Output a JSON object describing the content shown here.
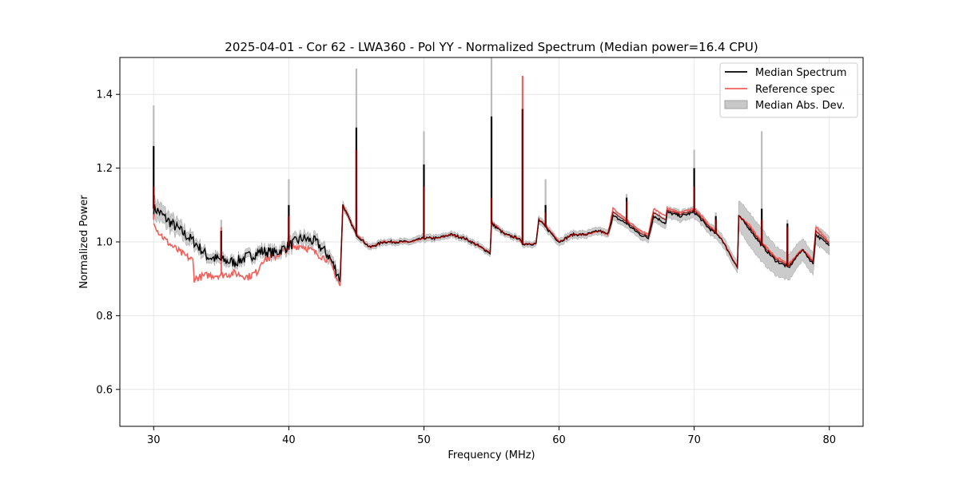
{
  "chart_data": {
    "type": "line",
    "title": "2025-04-01 - Cor 62 - LWA360 - Pol YY - Normalized Spectrum (Median power=16.4 CPU)",
    "xlabel": "Frequency (MHz)",
    "ylabel": "Normalized Power",
    "xlim": [
      27.5,
      82.5
    ],
    "ylim": [
      0.5,
      1.5
    ],
    "xticks": [
      30,
      40,
      50,
      60,
      70,
      80
    ],
    "yticks": [
      0.6,
      0.8,
      1.0,
      1.2,
      1.4
    ],
    "xtick_labels": [
      "30",
      "40",
      "50",
      "60",
      "70",
      "80"
    ],
    "ytick_labels": [
      "0.6",
      "0.8",
      "1.0",
      "1.2",
      "1.4"
    ],
    "grid": true,
    "legend_position": "top-right",
    "colors": {
      "median": "#000000",
      "reference": "#f0605a",
      "mad": "#c8c8c8",
      "mad_edge": "#a0a0a0",
      "overlap": "#8b0000"
    },
    "series": [
      {
        "name": "Median Spectrum",
        "x": [
          30.0,
          30.3,
          31.0,
          32.0,
          33.0,
          34.0,
          35.0,
          36.0,
          37.0,
          38.0,
          39.0,
          40.0,
          41.0,
          42.0,
          43.0,
          43.8,
          44.0,
          45.0,
          46.0,
          47.0,
          48.0,
          49.0,
          50.0,
          51.0,
          52.0,
          53.0,
          54.0,
          54.9,
          55.0,
          56.0,
          57.0,
          57.3,
          58.3,
          58.5,
          59.0,
          60.0,
          61.0,
          62.0,
          63.0,
          63.6,
          64.0,
          65.0,
          65.3,
          66.0,
          66.6,
          67.0,
          67.9,
          68.0,
          69.0,
          70.0,
          70.3,
          71.0,
          72.0,
          73.2,
          73.3,
          74.0,
          75.0,
          76.0,
          77.0,
          78.0,
          78.8,
          79.0,
          80.0
        ],
        "values": [
          1.09,
          1.085,
          1.06,
          1.03,
          1.0,
          0.96,
          0.95,
          0.945,
          0.96,
          0.975,
          0.97,
          0.99,
          1.01,
          1.0,
          0.96,
          0.9,
          1.1,
          1.02,
          0.985,
          1.0,
          1.0,
          1.0,
          1.01,
          1.01,
          1.02,
          1.01,
          0.99,
          0.97,
          1.05,
          1.02,
          1.01,
          0.995,
          0.995,
          1.06,
          1.04,
          1.0,
          1.02,
          1.02,
          1.03,
          1.02,
          1.07,
          1.05,
          1.04,
          1.02,
          1.01,
          1.07,
          1.05,
          1.08,
          1.07,
          1.08,
          1.07,
          1.04,
          1.01,
          0.93,
          1.07,
          1.04,
          0.99,
          0.95,
          0.93,
          0.98,
          0.94,
          1.02,
          0.99
        ]
      },
      {
        "name": "Reference spec",
        "x": [
          30.0,
          30.3,
          31.0,
          32.0,
          32.9,
          33.0,
          34.0,
          35.0,
          36.0,
          37.0,
          37.7,
          38.0,
          39.0,
          40.0,
          41.0,
          42.0,
          43.0,
          43.8,
          44.0,
          45.0,
          46.0,
          47.0,
          48.0,
          49.0,
          50.0,
          51.0,
          52.0,
          53.0,
          54.0,
          54.9,
          55.0,
          56.0,
          57.0,
          57.3,
          58.3,
          58.5,
          59.0,
          60.0,
          61.0,
          62.0,
          63.0,
          63.6,
          64.0,
          65.0,
          65.3,
          66.0,
          66.6,
          67.0,
          67.9,
          68.0,
          69.0,
          70.0,
          70.3,
          71.0,
          72.0,
          73.2,
          73.3,
          74.0,
          75.0,
          76.0,
          77.0,
          78.0,
          78.8,
          79.0,
          80.0
        ],
        "values": [
          1.06,
          1.03,
          1.0,
          0.97,
          0.95,
          0.9,
          0.91,
          0.91,
          0.915,
          0.905,
          0.92,
          0.95,
          0.96,
          0.985,
          0.99,
          0.97,
          0.95,
          0.88,
          1.1,
          1.02,
          0.985,
          1.0,
          1.0,
          1.0,
          1.01,
          1.01,
          1.02,
          1.01,
          0.99,
          0.97,
          1.055,
          1.02,
          1.01,
          0.995,
          0.995,
          1.06,
          1.045,
          1.0,
          1.02,
          1.02,
          1.03,
          1.02,
          1.09,
          1.06,
          1.05,
          1.03,
          1.02,
          1.09,
          1.07,
          1.09,
          1.08,
          1.09,
          1.08,
          1.05,
          1.01,
          0.93,
          1.07,
          1.05,
          1.0,
          0.96,
          0.94,
          0.98,
          0.95,
          1.04,
          1.0
        ]
      },
      {
        "name": "Median Abs. Dev.",
        "x": [
          30.0,
          30.3,
          31.0,
          32.0,
          33.0,
          34.0,
          35.0,
          36.0,
          37.0,
          38.0,
          39.0,
          40.0,
          41.0,
          42.0,
          43.0,
          43.8,
          44.0,
          45.0,
          46.0,
          47.0,
          48.0,
          49.0,
          50.0,
          51.0,
          52.0,
          53.0,
          54.0,
          54.9,
          55.0,
          56.0,
          57.0,
          57.3,
          58.3,
          58.5,
          59.0,
          60.0,
          61.0,
          62.0,
          63.0,
          63.6,
          64.0,
          65.0,
          65.3,
          66.0,
          66.6,
          67.0,
          67.9,
          68.0,
          69.0,
          70.0,
          70.3,
          71.0,
          72.0,
          73.2,
          73.3,
          74.0,
          75.0,
          76.0,
          77.0,
          78.0,
          78.8,
          79.0,
          80.0
        ],
        "values": [
          0.025,
          0.025,
          0.022,
          0.02,
          0.015,
          0.012,
          0.012,
          0.01,
          0.012,
          0.012,
          0.012,
          0.015,
          0.015,
          0.015,
          0.015,
          0.015,
          0.01,
          0.008,
          0.008,
          0.008,
          0.008,
          0.008,
          0.01,
          0.008,
          0.008,
          0.008,
          0.008,
          0.008,
          0.008,
          0.008,
          0.008,
          0.008,
          0.008,
          0.01,
          0.01,
          0.01,
          0.01,
          0.01,
          0.01,
          0.01,
          0.012,
          0.012,
          0.012,
          0.012,
          0.012,
          0.014,
          0.014,
          0.015,
          0.015,
          0.015,
          0.015,
          0.015,
          0.015,
          0.015,
          0.04,
          0.045,
          0.045,
          0.04,
          0.035,
          0.03,
          0.03,
          0.025,
          0.025
        ]
      }
    ],
    "spikes": [
      {
        "x": 30.0,
        "median": 1.26,
        "reference": 1.15,
        "mad_top": 1.37
      },
      {
        "x": 35.0,
        "median": 1.03,
        "reference": 1.04,
        "mad_top": 1.06
      },
      {
        "x": 40.0,
        "median": 1.1,
        "reference": 1.07,
        "mad_top": 1.17
      },
      {
        "x": 45.0,
        "median": 1.31,
        "reference": 1.25,
        "mad_top": 1.47
      },
      {
        "x": 50.0,
        "median": 1.21,
        "reference": 1.15,
        "mad_top": 1.3
      },
      {
        "x": 55.0,
        "median": 1.34,
        "reference": 1.12,
        "mad_top": 1.5
      },
      {
        "x": 57.3,
        "median": 1.36,
        "reference": 1.45,
        "mad_top": 1.45
      },
      {
        "x": 59.0,
        "median": 1.1,
        "reference": 1.08,
        "mad_top": 1.17
      },
      {
        "x": 65.0,
        "median": 1.12,
        "reference": 1.11,
        "mad_top": 1.13
      },
      {
        "x": 70.0,
        "median": 1.2,
        "reference": 1.15,
        "mad_top": 1.25
      },
      {
        "x": 71.6,
        "median": 1.07,
        "reference": 1.06,
        "mad_top": 1.08
      },
      {
        "x": 75.0,
        "median": 1.09,
        "reference": 1.06,
        "mad_top": 1.3
      },
      {
        "x": 76.9,
        "median": 1.05,
        "reference": 1.04,
        "mad_top": 1.06
      }
    ]
  }
}
